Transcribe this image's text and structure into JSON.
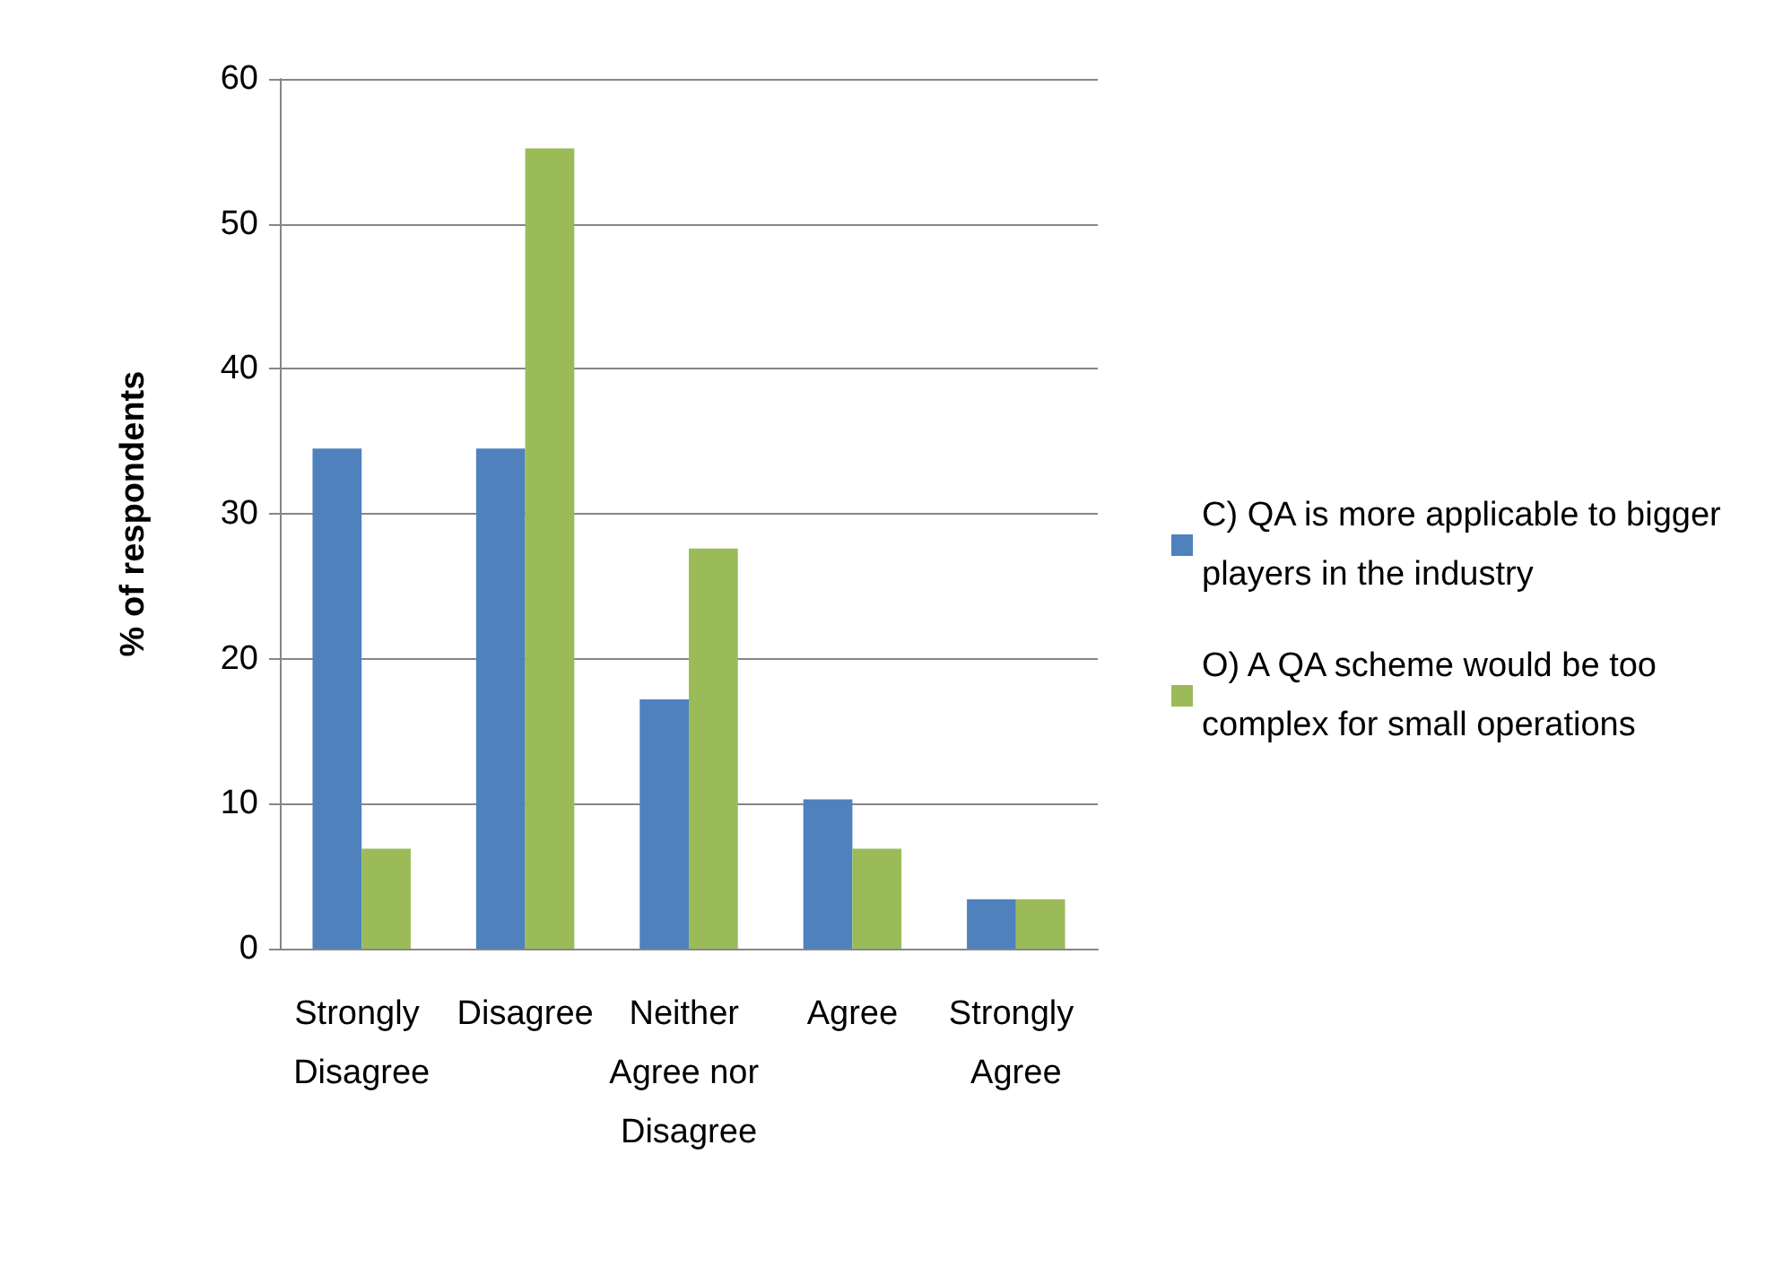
{
  "chart_data": {
    "type": "bar",
    "ylabel": "% of respondents",
    "categories": [
      "Strongly Disagree",
      "Disagree",
      "Neither Agree nor Disagree",
      "Agree",
      "Strongly Agree"
    ],
    "series": [
      {
        "name": "C) QA is more applicable to bigger players in the industry",
        "color": "#4f81bd",
        "values": [
          34.5,
          34.5,
          17.2,
          10.3,
          3.4
        ]
      },
      {
        "name": "O) A QA scheme would be too complex for small operations",
        "color": "#9bbb59",
        "values": [
          6.9,
          55.2,
          27.6,
          6.9,
          3.4
        ]
      }
    ],
    "ylim": [
      0,
      60
    ],
    "yticks": [
      0,
      10,
      20,
      30,
      40,
      50,
      60
    ],
    "grid": "y",
    "legend": "right"
  }
}
